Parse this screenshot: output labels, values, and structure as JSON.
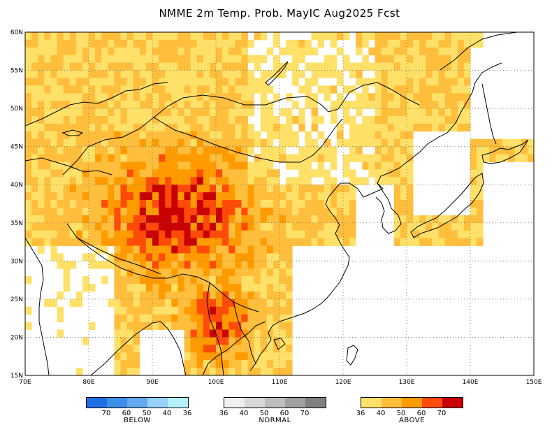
{
  "title": "NMME 2m Temp. Prob. MayIC  Aug2025 Fcst",
  "map": {
    "lat_labels": [
      "60N",
      "55N",
      "50N",
      "45N",
      "40N",
      "35N",
      "30N",
      "25N",
      "20N",
      "15N"
    ],
    "lon_labels": [
      "70E",
      "80E",
      "90E",
      "100E",
      "110E",
      "120E",
      "130E",
      "140E",
      "150E"
    ],
    "lon_range": [
      70,
      150
    ],
    "lat_range": [
      15,
      60
    ],
    "land_color": "#ffffff",
    "ocean_color": "#ffffff",
    "coastline_color": "#000000",
    "grid": "dotted"
  },
  "legend": [
    {
      "name": "BELOW",
      "ticks": [
        "70",
        "60",
        "50",
        "40",
        "36"
      ],
      "colors": [
        "#1e6ee6",
        "#3d8fe8",
        "#64aaf0",
        "#96d2fa",
        "#b4f0fa"
      ]
    },
    {
      "name": "NORMAL",
      "ticks": [
        "36",
        "40",
        "50",
        "60",
        "70"
      ],
      "colors": [
        "#f0f0f0",
        "#d7d7d7",
        "#bebebe",
        "#a0a0a0",
        "#808080"
      ]
    },
    {
      "name": "ABOVE",
      "ticks": [
        "36",
        "40",
        "50",
        "60",
        "70"
      ],
      "colors": [
        "#ffe169",
        "#ffbe3c",
        "#ff9b00",
        "#ff4b0a",
        "#c80000"
      ]
    }
  ]
}
